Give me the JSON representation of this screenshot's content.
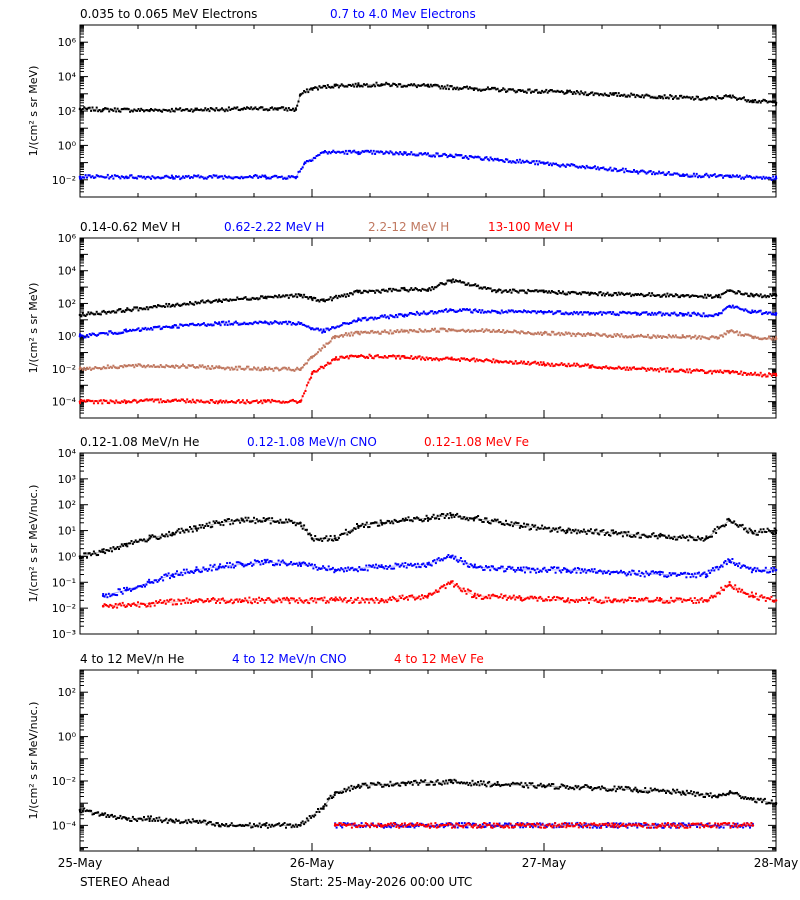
{
  "footer": {
    "spacecraft": "STEREO Ahead",
    "start": "Start: 25-May-2026 00:00 UTC"
  },
  "x_axis": {
    "tick_labels": [
      "25-May",
      "26-May",
      "27-May",
      "28-May"
    ],
    "range_days": [
      0,
      3
    ]
  },
  "chart_data": [
    {
      "type": "scatter",
      "yscale": "log",
      "ylabel": "1/(cm² s sr MeV)",
      "ylim": [
        0.001,
        10000000
      ],
      "y_ticks": [
        {
          "value": 0.01,
          "label": "10⁻²"
        },
        {
          "value": 1,
          "label": "10⁰"
        },
        {
          "value": 100,
          "label": "10²"
        },
        {
          "value": 10000,
          "label": "10⁴"
        },
        {
          "value": 1000000,
          "label": "10⁶"
        }
      ],
      "series": [
        {
          "name": "0.035 to 0.065 MeV Electrons",
          "color": "#000000",
          "x": [
            0,
            0.1,
            0.3,
            0.5,
            0.7,
            0.85,
            0.93,
            0.95,
            1.0,
            1.1,
            1.2,
            1.3,
            1.5,
            1.7,
            1.9,
            2.1,
            2.3,
            2.5,
            2.7,
            2.8,
            2.9,
            3.0
          ],
          "y": [
            130,
            120,
            110,
            120,
            130,
            140,
            120,
            900,
            2000,
            3000,
            3200,
            3500,
            2800,
            2000,
            1500,
            1200,
            900,
            700,
            500,
            700,
            400,
            300
          ]
        },
        {
          "name": "0.7 to 4.0 Mev Electrons",
          "color": "#0000ff",
          "x": [
            0,
            0.2,
            0.4,
            0.6,
            0.8,
            0.93,
            0.97,
            1.05,
            1.2,
            1.4,
            1.6,
            1.8,
            2.0,
            2.2,
            2.4,
            2.6,
            2.8,
            3.0
          ],
          "y": [
            0.015,
            0.015,
            0.014,
            0.015,
            0.015,
            0.014,
            0.1,
            0.4,
            0.4,
            0.35,
            0.25,
            0.15,
            0.09,
            0.05,
            0.03,
            0.02,
            0.015,
            0.012
          ]
        }
      ]
    },
    {
      "type": "scatter",
      "yscale": "log",
      "ylabel": "1/(cm² s sr MeV)",
      "ylim": [
        1e-05,
        1000000
      ],
      "y_ticks": [
        {
          "value": 0.0001,
          "label": "10⁻⁴"
        },
        {
          "value": 0.01,
          "label": "10⁻²"
        },
        {
          "value": 1,
          "label": "10⁰"
        },
        {
          "value": 100,
          "label": "10²"
        },
        {
          "value": 10000,
          "label": "10⁴"
        },
        {
          "value": 1000000,
          "label": "10⁶"
        }
      ],
      "series": [
        {
          "name": "0.14-0.62 MeV H",
          "color": "#000000",
          "x": [
            0,
            0.2,
            0.4,
            0.6,
            0.8,
            0.95,
            1.0,
            1.05,
            1.2,
            1.4,
            1.5,
            1.6,
            1.8,
            2.0,
            2.2,
            2.4,
            2.6,
            2.75,
            2.8,
            2.9,
            3.0
          ],
          "y": [
            20,
            40,
            80,
            150,
            250,
            300,
            200,
            150,
            500,
            700,
            700,
            2500,
            600,
            500,
            400,
            350,
            300,
            250,
            600,
            300,
            300
          ]
        },
        {
          "name": "0.62-2.22 MeV H",
          "color": "#0000ff",
          "x": [
            0,
            0.2,
            0.4,
            0.6,
            0.8,
            0.95,
            1.0,
            1.05,
            1.2,
            1.4,
            1.6,
            1.8,
            2.0,
            2.2,
            2.4,
            2.6,
            2.75,
            2.8,
            2.9,
            3.0
          ],
          "y": [
            1,
            2,
            4,
            6,
            7,
            6,
            3,
            2,
            10,
            20,
            40,
            30,
            30,
            25,
            25,
            22,
            20,
            70,
            30,
            25
          ]
        },
        {
          "name": "2.2-12 MeV H",
          "color": "#c07860",
          "x": [
            0,
            0.2,
            0.4,
            0.6,
            0.8,
            0.95,
            1.0,
            1.1,
            1.2,
            1.4,
            1.6,
            1.8,
            2.0,
            2.2,
            2.4,
            2.6,
            2.75,
            2.8,
            2.9,
            3.0
          ],
          "y": [
            0.01,
            0.015,
            0.015,
            0.012,
            0.01,
            0.009,
            0.05,
            1,
            1.5,
            2,
            2.5,
            2,
            1.5,
            1.2,
            1,
            0.9,
            0.8,
            2,
            0.9,
            0.7
          ]
        },
        {
          "name": "13-100 MeV H",
          "color": "#ff0000",
          "x": [
            0,
            0.2,
            0.4,
            0.6,
            0.8,
            0.95,
            1.0,
            1.1,
            1.2,
            1.4,
            1.6,
            1.8,
            2.0,
            2.2,
            2.4,
            2.6,
            2.8,
            3.0
          ],
          "y": [
            0.0001,
            0.0001,
            0.00012,
            0.0001,
            0.0001,
            0.0001,
            0.005,
            0.04,
            0.06,
            0.05,
            0.04,
            0.03,
            0.02,
            0.015,
            0.01,
            0.008,
            0.006,
            0.004
          ]
        }
      ]
    },
    {
      "type": "scatter",
      "yscale": "log",
      "ylabel": "1/(cm² s sr MeV/nuc.)",
      "ylim": [
        0.001,
        10000
      ],
      "y_ticks": [
        {
          "value": 0.001,
          "label": "10⁻³"
        },
        {
          "value": 0.01,
          "label": "10⁻²"
        },
        {
          "value": 0.1,
          "label": "10⁻¹"
        },
        {
          "value": 1,
          "label": "10⁰"
        },
        {
          "value": 10,
          "label": "10¹"
        },
        {
          "value": 100,
          "label": "10²"
        },
        {
          "value": 1000,
          "label": "10³"
        },
        {
          "value": 10000,
          "label": "10⁴"
        }
      ],
      "series": [
        {
          "name": "0.12-1.08 MeV/n He",
          "color": "#000000",
          "x": [
            0,
            0.1,
            0.2,
            0.3,
            0.4,
            0.5,
            0.6,
            0.7,
            0.8,
            0.95,
            1.0,
            1.1,
            1.2,
            1.3,
            1.4,
            1.5,
            1.6,
            1.7,
            1.9,
            2.1,
            2.3,
            2.5,
            2.7,
            2.8,
            2.9,
            3.0
          ],
          "y": [
            1,
            1.5,
            3,
            5,
            8,
            12,
            20,
            25,
            25,
            20,
            5,
            5,
            15,
            20,
            25,
            30,
            40,
            30,
            15,
            10,
            8,
            6,
            5,
            25,
            8,
            10
          ]
        },
        {
          "name": "0.12-1.08 MeV/n CNO",
          "color": "#0000ff",
          "x": [
            0.1,
            0.2,
            0.3,
            0.4,
            0.5,
            0.6,
            0.7,
            0.8,
            0.95,
            1.1,
            1.3,
            1.5,
            1.6,
            1.7,
            1.9,
            2.1,
            2.3,
            2.5,
            2.7,
            2.8,
            2.9,
            3.0
          ],
          "y": [
            0.03,
            0.05,
            0.1,
            0.2,
            0.3,
            0.4,
            0.5,
            0.6,
            0.5,
            0.3,
            0.4,
            0.5,
            1,
            0.4,
            0.3,
            0.3,
            0.25,
            0.2,
            0.2,
            0.7,
            0.3,
            0.3
          ]
        },
        {
          "name": "0.12-1.08 MeV Fe",
          "color": "#ff0000",
          "x": [
            0.1,
            0.3,
            0.5,
            0.7,
            0.9,
            1.1,
            1.3,
            1.5,
            1.6,
            1.7,
            1.9,
            2.1,
            2.3,
            2.5,
            2.7,
            2.8,
            2.9,
            3.0
          ],
          "y": [
            0.012,
            0.015,
            0.02,
            0.02,
            0.02,
            0.02,
            0.02,
            0.03,
            0.1,
            0.03,
            0.025,
            0.02,
            0.02,
            0.02,
            0.02,
            0.08,
            0.03,
            0.02
          ]
        }
      ]
    },
    {
      "type": "scatter",
      "yscale": "log",
      "ylabel": "1/(cm² s sr MeV/nuc.)",
      "ylim": [
        7e-06,
        1000
      ],
      "y_ticks": [
        {
          "value": 0.0001,
          "label": "10⁻⁴"
        },
        {
          "value": 0.01,
          "label": "10⁻²"
        },
        {
          "value": 1,
          "label": "10⁰"
        },
        {
          "value": 100,
          "label": "10²"
        }
      ],
      "series": [
        {
          "name": "4 to 12 MeV/n He",
          "color": "#000000",
          "x": [
            0,
            0.1,
            0.2,
            0.3,
            0.4,
            0.5,
            0.6,
            0.7,
            0.8,
            0.95,
            1.05,
            1.1,
            1.2,
            1.4,
            1.6,
            1.8,
            2.0,
            2.2,
            2.4,
            2.6,
            2.75,
            2.8,
            2.9,
            3.0
          ],
          "y": [
            0.0005,
            0.0003,
            0.0002,
            0.0002,
            0.00015,
            0.00015,
            0.0001,
            0.0001,
            0.0001,
            0.0001,
            0.0007,
            0.003,
            0.006,
            0.008,
            0.009,
            0.007,
            0.006,
            0.005,
            0.004,
            0.003,
            0.002,
            0.003,
            0.0015,
            0.001
          ]
        },
        {
          "name": "4 to 12 MeV/n CNO",
          "color": "#0000ff",
          "x": [
            1.1,
            1.3,
            1.5,
            1.7,
            1.9,
            2.1,
            2.3,
            2.5,
            2.7,
            2.9
          ],
          "y": [
            0.0001,
            0.0001,
            0.0001,
            0.0001,
            0.0001,
            0.0001,
            0.0001,
            0.0001,
            0.0001,
            0.0001
          ]
        },
        {
          "name": "4 to 12 MeV Fe",
          "color": "#ff0000",
          "x": [
            1.1,
            1.3,
            1.5,
            1.7,
            1.9,
            2.1,
            2.3,
            2.5,
            2.7,
            2.9
          ],
          "y": [
            0.0001,
            0.0001,
            0.0001,
            0.0001,
            0.0001,
            0.0001,
            0.0001,
            0.0001,
            0.0001,
            0.0001
          ]
        }
      ]
    }
  ]
}
